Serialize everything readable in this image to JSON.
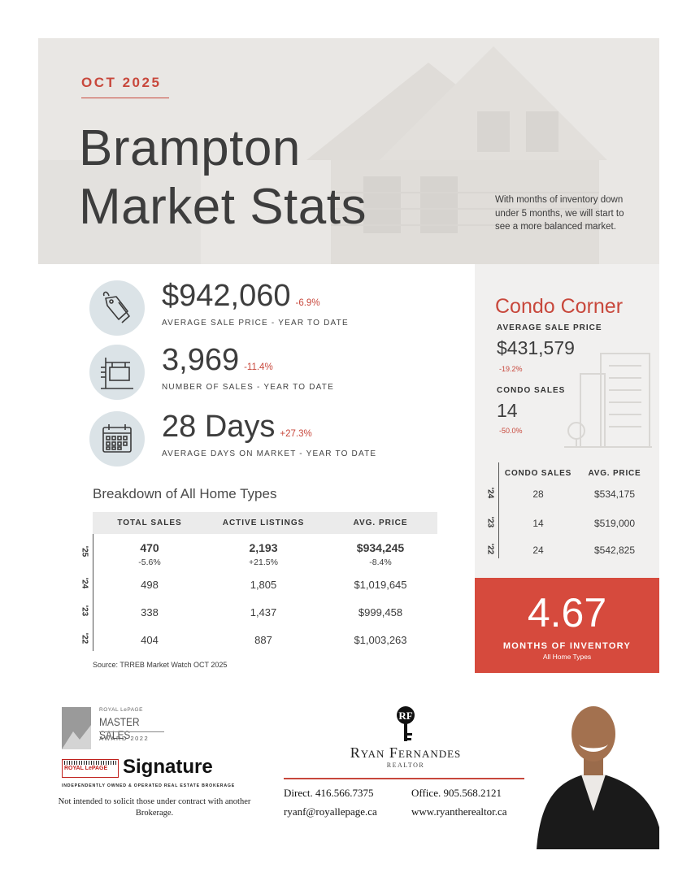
{
  "hero": {
    "month": "OCT 2025",
    "title_line1": "Brampton",
    "title_line2": "Market Stats",
    "note": "With months of inventory down under 5 months, we will start to see a more balanced market."
  },
  "stats": [
    {
      "icon": "price-tag-icon",
      "value": "$942,060",
      "change": "-6.9%",
      "label": "AVERAGE SALE PRICE - YEAR TO DATE"
    },
    {
      "icon": "sale-sign-icon",
      "value": "3,969",
      "change": "-11.4%",
      "label": "NUMBER OF SALES - YEAR TO DATE"
    },
    {
      "icon": "calendar-icon",
      "value": "28 Days",
      "change": "+27.3%",
      "label": "AVERAGE DAYS ON MARKET - YEAR TO DATE"
    }
  ],
  "breakdown": {
    "title": "Breakdown of All Home Types",
    "headers": [
      "TOTAL SALES",
      "ACTIVE LISTINGS",
      "AVG. PRICE"
    ],
    "rows": [
      {
        "year": "'25",
        "total_sales": "470",
        "active_listings": "2,193",
        "avg_price": "$934,245",
        "total_sales_change": "-5.6%",
        "active_listings_change": "+21.5%",
        "avg_price_change": "-8.4%"
      },
      {
        "year": "'24",
        "total_sales": "498",
        "active_listings": "1,805",
        "avg_price": "$1,019,645"
      },
      {
        "year": "'23",
        "total_sales": "338",
        "active_listings": "1,437",
        "avg_price": "$999,458"
      },
      {
        "year": "'22",
        "total_sales": "404",
        "active_listings": "887",
        "avg_price": "$1,003,263"
      }
    ],
    "source": "Source: TRREB Market Watch OCT 2025"
  },
  "condo": {
    "title": "Condo Corner",
    "avg_price_label": "AVERAGE SALE PRICE",
    "avg_price": "$431,579",
    "avg_price_change": "-19.2%",
    "sales_label": "CONDO SALES",
    "sales": "14",
    "sales_change": "-50.0%",
    "table_headers": [
      "CONDO SALES",
      "AVG. PRICE"
    ],
    "rows": [
      {
        "year": "'24",
        "sales": "28",
        "avg_price": "$534,175"
      },
      {
        "year": "'23",
        "sales": "14",
        "avg_price": "$519,000"
      },
      {
        "year": "'22",
        "sales": "24",
        "avg_price": "$542,825"
      }
    ]
  },
  "inventory": {
    "value": "4.67",
    "label": "MONTHS OF INVENTORY",
    "sub": "All Home Types"
  },
  "footer": {
    "award_small": "ROYAL LePAGE",
    "award_main": "MASTER SALES",
    "award_year": "AWARD 2022",
    "brand_royal": "ROYAL LePAGE",
    "brand_signature": "Signature",
    "brand_tagline": "INDEPENDENTLY OWNED & OPERATED REAL ESTATE BROKERAGE",
    "disclaimer": "Not intended to solicit those under contract with another Brokerage.",
    "agent_name": "Ryan Fernandes",
    "agent_role": "REALTOR",
    "direct": "Direct. 416.566.7375",
    "office": "Office. 905.568.2121",
    "email": "ryanf@royallepage.ca",
    "website": "www.ryantherealtor.ca"
  },
  "colors": {
    "accent": "#c8483c",
    "inventory_bg": "#d64a3d",
    "icon_circle": "#dbe3e7",
    "condo_bg": "#f1f0ef"
  }
}
